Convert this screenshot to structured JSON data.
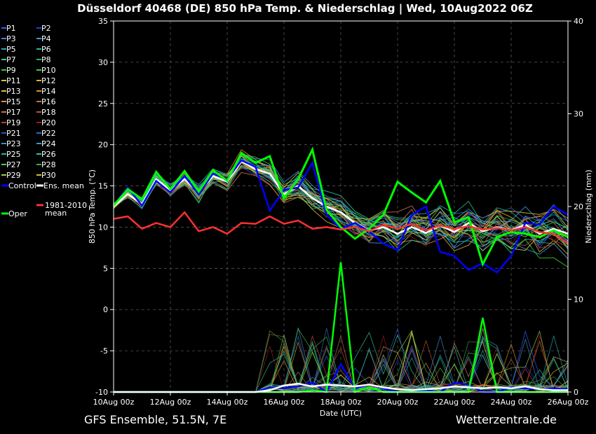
{
  "chart_data": {
    "type": "line",
    "title": "Düsseldorf 40468 (DE)  850 hPa Temp. & Niederschlag | Wed, 10Aug2022 06Z",
    "xlabel": "Date (UTC)",
    "ylabel": "850 hPa Temp. (°C)",
    "y2label": "Niederschlag (mm)",
    "footer_left": "GFS Ensemble, 51.5N, 7E",
    "footer_right": "Wetterzentrale.de",
    "x_ticks": [
      "10Aug 00z",
      "12Aug 00z",
      "14Aug 00z",
      "16Aug 00z",
      "18Aug 00z",
      "20Aug 00z",
      "22Aug 00z",
      "24Aug 00z",
      "26Aug 00z"
    ],
    "y_ticks": [
      "-10",
      "-5",
      "0",
      "5",
      "10",
      "15",
      "20",
      "25",
      "30",
      "35"
    ],
    "y2_ticks": [
      "0",
      "10",
      "20",
      "30",
      "40"
    ],
    "ylim": [
      -10,
      35
    ],
    "y2lim": [
      0,
      40
    ],
    "grid": true,
    "legend": [
      {
        "name": "P1",
        "color": "#3060ff"
      },
      {
        "name": "P2",
        "color": "#2040d0"
      },
      {
        "name": "P3",
        "color": "#4a80e0"
      },
      {
        "name": "P4",
        "color": "#3a9ad8"
      },
      {
        "name": "P5",
        "color": "#2aa8b8"
      },
      {
        "name": "P6",
        "color": "#20b890"
      },
      {
        "name": "P7",
        "color": "#30c8a0"
      },
      {
        "name": "P8",
        "color": "#28b060"
      },
      {
        "name": "P9",
        "color": "#40c040"
      },
      {
        "name": "P10",
        "color": "#38d038"
      },
      {
        "name": "P11",
        "color": "#c8c850"
      },
      {
        "name": "P12",
        "color": "#d8b040"
      },
      {
        "name": "P13",
        "color": "#e0c030"
      },
      {
        "name": "P14",
        "color": "#e09030"
      },
      {
        "name": "P15",
        "color": "#d89060"
      },
      {
        "name": "P16",
        "color": "#c07050"
      },
      {
        "name": "P17",
        "color": "#d07040"
      },
      {
        "name": "P18",
        "color": "#c05030"
      },
      {
        "name": "P19",
        "color": "#b04040"
      },
      {
        "name": "P20",
        "color": "#902020"
      },
      {
        "name": "P21",
        "color": "#3050c0"
      },
      {
        "name": "P22",
        "color": "#2a70c0"
      },
      {
        "name": "P23",
        "color": "#4090d0"
      },
      {
        "name": "P24",
        "color": "#30a0c0"
      },
      {
        "name": "P25",
        "color": "#20b8a0"
      },
      {
        "name": "P26",
        "color": "#30c0a8"
      },
      {
        "name": "P27",
        "color": "#40d070"
      },
      {
        "name": "P28",
        "color": "#30b050"
      },
      {
        "name": "P29",
        "color": "#a0d040"
      },
      {
        "name": "P30",
        "color": "#d0c020"
      },
      {
        "name": "Control",
        "color": "#0000ff"
      },
      {
        "name": "Ens. mean",
        "color": "#ffffff"
      },
      {
        "name": "Oper",
        "color": "#00ff00"
      },
      {
        "name": "1981-2010 mean",
        "color": "#ff3030"
      }
    ],
    "x_days": [
      0,
      0.5,
      1,
      1.5,
      2,
      2.5,
      3,
      3.5,
      4,
      4.5,
      5,
      5.5,
      6,
      6.5,
      7,
      7.5,
      8,
      8.5,
      9,
      9.5,
      10,
      10.5,
      11,
      11.5,
      12,
      12.5,
      13,
      13.5,
      14,
      14.5,
      15,
      15.5,
      16
    ],
    "series": [
      {
        "name": "Ens. mean",
        "values": [
          12.5,
          14,
          12.8,
          15.8,
          14.5,
          15.8,
          14.2,
          16.2,
          15.5,
          18,
          17,
          16.5,
          14,
          15,
          13.5,
          12.5,
          11.8,
          10.5,
          9.6,
          10,
          9.2,
          10,
          9.3,
          10.2,
          9.4,
          10.5,
          9.5,
          10,
          9.6,
          10.3,
          9.2,
          9.8,
          9.2
        ]
      },
      {
        "name": "Control",
        "values": [
          12.6,
          14.8,
          12.6,
          15.6,
          14.2,
          16.2,
          14,
          16.5,
          15.8,
          18.1,
          17.3,
          12,
          14.5,
          14.8,
          17.8,
          11.5,
          9.8,
          10.5,
          9.5,
          8,
          7.2,
          11.5,
          12.5,
          7,
          6.5,
          4.8,
          5.6,
          4.5,
          6.5,
          10.5,
          10.3,
          12.5,
          11.5
        ]
      },
      {
        "name": "Oper",
        "values": [
          12.6,
          14.6,
          13.4,
          16.7,
          14.6,
          16.8,
          14.3,
          16.9,
          15.6,
          19,
          17.8,
          18.6,
          13.5,
          15.8,
          19.4,
          12.1,
          10,
          8.6,
          9.8,
          11.5,
          15.5,
          14.2,
          13,
          15.6,
          10.6,
          11.2,
          5.5,
          8.8,
          9.4,
          9.2,
          8.8,
          9.6,
          8.8
        ]
      },
      {
        "name": "1981-2010 mean",
        "values": [
          11,
          11.3,
          9.8,
          10.5,
          10,
          11.8,
          9.5,
          10,
          9.2,
          10.5,
          10.4,
          11.3,
          10.4,
          10.8,
          9.8,
          10,
          9.7,
          10,
          9.5,
          10.3,
          9.8,
          10.4,
          9.6,
          10.2,
          9.8,
          10.1,
          9.7,
          9.9,
          9.6,
          10,
          9.4,
          9.2,
          8
        ]
      }
    ],
    "precip_mm": {
      "Control": [
        0,
        0,
        0,
        0,
        0,
        0,
        0,
        0,
        0,
        0,
        0,
        0.5,
        0.4,
        0.6,
        1,
        0,
        3,
        0.4,
        0.8,
        0.4,
        0,
        0,
        0.2,
        0,
        1,
        0.8,
        0,
        0,
        0.5,
        0.4,
        0.3,
        0.4,
        0.3
      ],
      "Oper": [
        0,
        0,
        0,
        0,
        0,
        0,
        0,
        0,
        0,
        0,
        0,
        0,
        0,
        0,
        0.2,
        0,
        14,
        0,
        0.5,
        0,
        0,
        0,
        0,
        0,
        0,
        0,
        8,
        0,
        0,
        0,
        0,
        0,
        0
      ],
      "Ens. mean": [
        0,
        0,
        0,
        0,
        0,
        0,
        0,
        0,
        0,
        0,
        0,
        0.2,
        0.7,
        0.9,
        0.6,
        0.8,
        0.7,
        0.6,
        0.8,
        0.5,
        0.3,
        0.2,
        0.3,
        0.4,
        0.6,
        0.5,
        0.4,
        0.5,
        0.4,
        0.6,
        0.3,
        0.2,
        0.2
      ]
    }
  }
}
